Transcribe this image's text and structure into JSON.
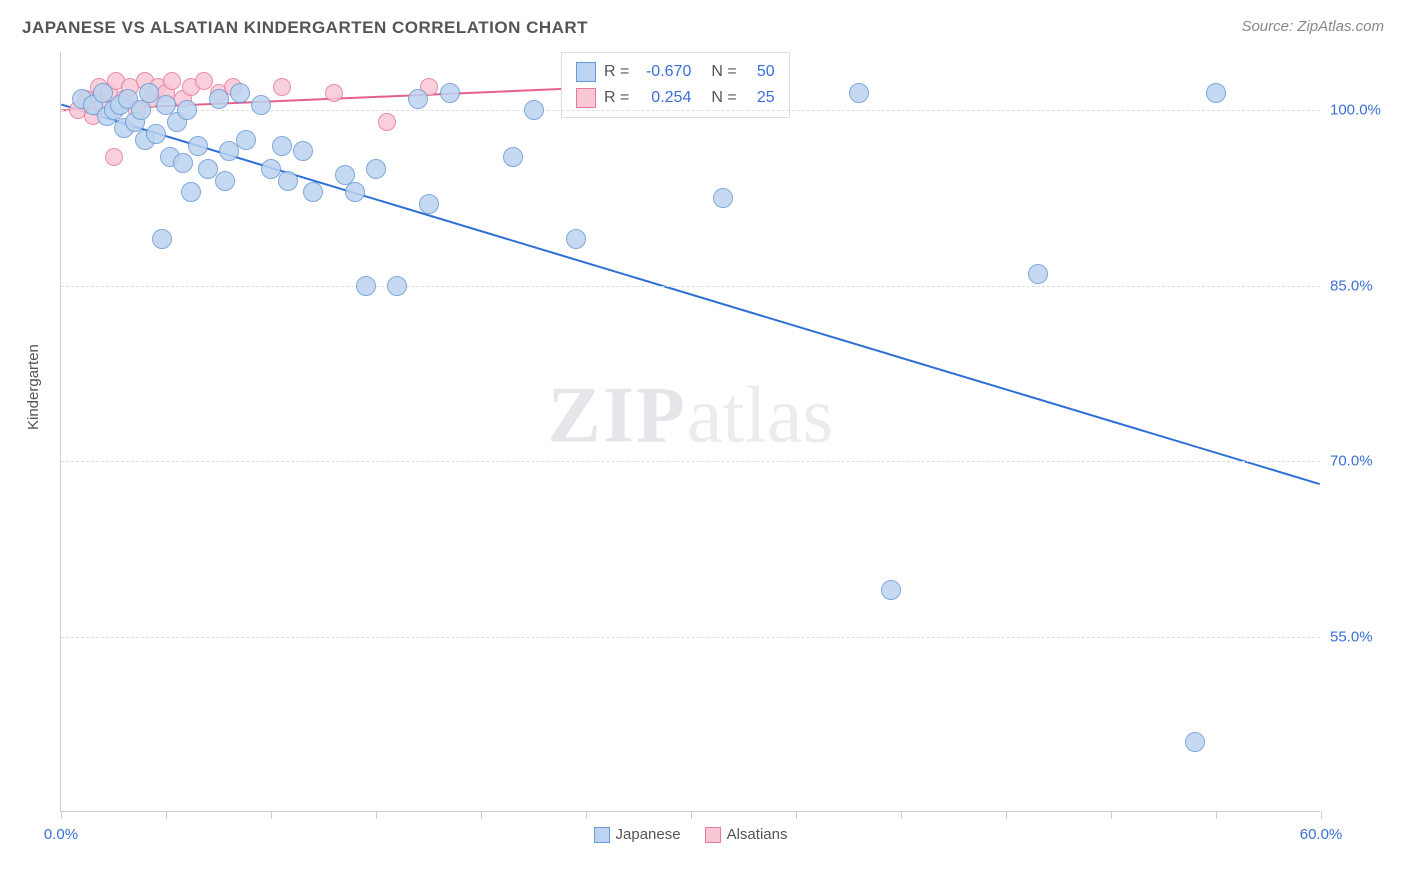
{
  "title": "JAPANESE VS ALSATIAN KINDERGARTEN CORRELATION CHART",
  "source": "Source: ZipAtlas.com",
  "ylabel": "Kindergarten",
  "watermark_bold": "ZIP",
  "watermark_rest": "atlas",
  "chart": {
    "type": "scatter",
    "xlim": [
      0,
      60
    ],
    "ylim": [
      40,
      105
    ],
    "xtick_positions": [
      0,
      5,
      10,
      15,
      20,
      25,
      30,
      35,
      40,
      45,
      50,
      55,
      60
    ],
    "xtick_labels_shown": {
      "0": "0.0%",
      "60": "60.0%"
    },
    "ytick_positions": [
      55,
      70,
      85,
      100
    ],
    "ytick_labels": [
      "55.0%",
      "70.0%",
      "85.0%",
      "100.0%"
    ],
    "background_color": "#ffffff",
    "grid_color": "#dddddd",
    "axis_color": "#cccccc",
    "series": [
      {
        "name": "Japanese",
        "marker_fill": "#bcd4f0",
        "marker_stroke": "#6a9ad4",
        "marker_radius": 10,
        "line_color": "#2e6fd6",
        "line_width": 2,
        "R": "-0.670",
        "N": "50",
        "trend": {
          "x1": 0,
          "y1": 100.5,
          "x2": 60,
          "y2": 68
        },
        "points": [
          [
            1.0,
            101
          ],
          [
            1.5,
            100.5
          ],
          [
            2.0,
            101.5
          ],
          [
            2.2,
            99.5
          ],
          [
            2.5,
            100
          ],
          [
            2.8,
            100.5
          ],
          [
            3.0,
            98.5
          ],
          [
            3.2,
            101
          ],
          [
            3.5,
            99
          ],
          [
            3.8,
            100
          ],
          [
            4.0,
            97.5
          ],
          [
            4.2,
            101.5
          ],
          [
            4.5,
            98
          ],
          [
            5.0,
            100.5
          ],
          [
            5.2,
            96
          ],
          [
            5.5,
            99
          ],
          [
            5.8,
            95.5
          ],
          [
            6.0,
            100
          ],
          [
            6.5,
            97
          ],
          [
            7.0,
            95
          ],
          [
            7.5,
            101
          ],
          [
            7.8,
            94
          ],
          [
            8.5,
            101.5
          ],
          [
            4.8,
            89
          ],
          [
            6.2,
            93
          ],
          [
            8.0,
            96.5
          ],
          [
            8.8,
            97.5
          ],
          [
            9.5,
            100.5
          ],
          [
            10.0,
            95
          ],
          [
            10.5,
            97
          ],
          [
            10.8,
            94
          ],
          [
            11.5,
            96.5
          ],
          [
            12.0,
            93
          ],
          [
            13.5,
            94.5
          ],
          [
            14.0,
            93
          ],
          [
            15.0,
            95
          ],
          [
            17.0,
            101
          ],
          [
            17.5,
            92
          ],
          [
            18.5,
            101.5
          ],
          [
            14.5,
            85
          ],
          [
            16.0,
            85
          ],
          [
            21.5,
            96
          ],
          [
            22.5,
            100
          ],
          [
            24.5,
            89
          ],
          [
            31.5,
            92.5
          ],
          [
            38.0,
            101.5
          ],
          [
            39.5,
            59
          ],
          [
            46.5,
            86
          ],
          [
            54.0,
            46
          ],
          [
            55.0,
            101.5
          ]
        ]
      },
      {
        "name": "Alsatians",
        "marker_fill": "#f7c7d4",
        "marker_stroke": "#e77a9a",
        "marker_radius": 9,
        "line_color": "#e85f8a",
        "line_width": 2,
        "R": "0.254",
        "N": "25",
        "trend": {
          "x1": 0,
          "y1": 100,
          "x2": 26,
          "y2": 102
        },
        "points": [
          [
            0.8,
            100
          ],
          [
            1.2,
            101
          ],
          [
            1.5,
            99.5
          ],
          [
            1.8,
            102
          ],
          [
            2.0,
            100.5
          ],
          [
            2.3,
            101.5
          ],
          [
            2.6,
            102.5
          ],
          [
            2.5,
            96
          ],
          [
            3.0,
            101
          ],
          [
            3.3,
            102
          ],
          [
            3.6,
            100
          ],
          [
            4.0,
            102.5
          ],
          [
            4.3,
            101
          ],
          [
            4.6,
            102
          ],
          [
            5.0,
            101.5
          ],
          [
            5.3,
            102.5
          ],
          [
            5.8,
            101
          ],
          [
            6.2,
            102
          ],
          [
            6.8,
            102.5
          ],
          [
            7.5,
            101.5
          ],
          [
            8.2,
            102
          ],
          [
            10.5,
            102
          ],
          [
            13.0,
            101.5
          ],
          [
            15.5,
            99
          ],
          [
            17.5,
            102
          ]
        ]
      }
    ],
    "legend_box": {
      "R_label": "R =",
      "N_label": "N ="
    },
    "bottom_legend": [
      "Japanese",
      "Alsatians"
    ]
  }
}
